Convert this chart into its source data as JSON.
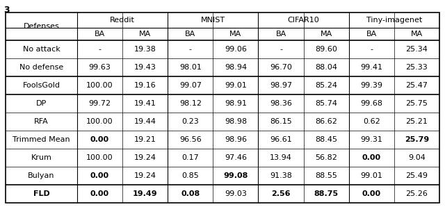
{
  "col_groups": [
    "Reddit",
    "MNIST",
    "CIFAR10",
    "Tiny-imagenet"
  ],
  "rows": [
    {
      "label": "No attack",
      "vals": [
        "-",
        "19.38",
        "-",
        "99.06",
        "-",
        "89.60",
        "-",
        "25.34"
      ],
      "bold": [],
      "fld": false
    },
    {
      "label": "No defense",
      "vals": [
        "99.63",
        "19.43",
        "98.01",
        "98.94",
        "96.70",
        "88.04",
        "99.41",
        "25.33"
      ],
      "bold": [],
      "fld": false
    },
    {
      "label": "FoolsGold",
      "vals": [
        "100.00",
        "19.16",
        "99.07",
        "99.01",
        "98.97",
        "85.24",
        "99.39",
        "25.47"
      ],
      "bold": [],
      "fld": false
    },
    {
      "label": "DP",
      "vals": [
        "99.72",
        "19.41",
        "98.12",
        "98.91",
        "98.36",
        "85.74",
        "99.68",
        "25.75"
      ],
      "bold": [],
      "fld": false
    },
    {
      "label": "RFA",
      "vals": [
        "100.00",
        "19.44",
        "0.23",
        "98.98",
        "86.15",
        "86.62",
        "0.62",
        "25.21"
      ],
      "bold": [],
      "fld": false
    },
    {
      "label": "Trimmed Mean",
      "vals": [
        "0.00",
        "19.21",
        "96.56",
        "98.96",
        "96.61",
        "88.45",
        "99.31",
        "25.79"
      ],
      "bold": [
        0,
        7
      ],
      "fld": false
    },
    {
      "label": "Krum",
      "vals": [
        "100.00",
        "19.24",
        "0.17",
        "97.46",
        "13.94",
        "56.82",
        "0.00",
        "9.04"
      ],
      "bold": [
        6
      ],
      "fld": false
    },
    {
      "label": "Bulyan",
      "vals": [
        "0.00",
        "19.24",
        "0.85",
        "99.08",
        "91.38",
        "88.55",
        "99.01",
        "25.49"
      ],
      "bold": [
        0,
        3
      ],
      "fld": false
    },
    {
      "label": "FLD",
      "vals": [
        "0.00",
        "19.49",
        "0.08",
        "99.03",
        "2.56",
        "88.75",
        "0.00",
        "25.26"
      ],
      "bold": [
        0,
        1,
        2,
        4,
        5,
        6
      ],
      "fld": true
    }
  ],
  "thick_sep_after_data_rows": [
    1,
    2
  ],
  "fld_row_idx": 8,
  "bg_color": "#ffffff",
  "figsize": [
    6.4,
    2.98
  ],
  "dpi": 100
}
